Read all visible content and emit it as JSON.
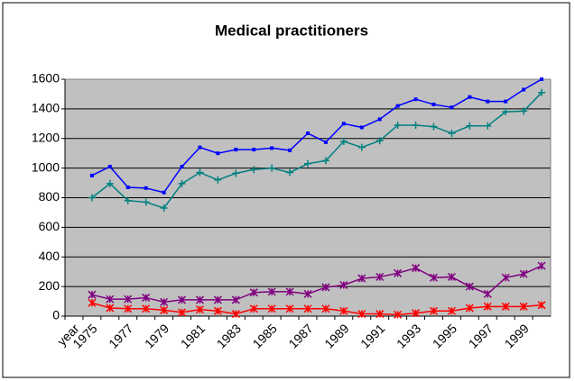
{
  "chart_data": {
    "type": "line",
    "title": "Medical practitioners",
    "categories": [
      "year",
      "1975",
      null,
      "1977",
      null,
      "1979",
      null,
      "1981",
      null,
      "1983",
      null,
      "1985",
      null,
      "1987",
      null,
      "1989",
      null,
      "1991",
      null,
      "1993",
      null,
      "1995",
      null,
      "1997",
      null,
      "1999",
      null
    ],
    "series": [
      {
        "color": "#0000ff",
        "marker": "dot",
        "values": [
          null,
          950,
          1010,
          870,
          865,
          835,
          1010,
          1140,
          1100,
          1125,
          1125,
          1135,
          1120,
          1235,
          1175,
          1300,
          1275,
          1330,
          1420,
          1465,
          1430,
          1410,
          1480,
          1450,
          1450,
          1530,
          1600
        ]
      },
      {
        "color": "#008080",
        "marker": "plus",
        "values": [
          null,
          800,
          895,
          780,
          770,
          730,
          895,
          970,
          920,
          965,
          990,
          1000,
          970,
          1030,
          1050,
          1180,
          1140,
          1185,
          1290,
          1290,
          1280,
          1235,
          1285,
          1285,
          1380,
          1385,
          1510
        ]
      },
      {
        "color": "#800080",
        "marker": "asterisk",
        "values": [
          null,
          145,
          115,
          115,
          125,
          95,
          110,
          110,
          110,
          110,
          160,
          165,
          165,
          150,
          195,
          210,
          255,
          265,
          290,
          325,
          260,
          265,
          200,
          150,
          260,
          285,
          340
        ]
      },
      {
        "color": "#ff0000",
        "marker": "asterisk",
        "values": [
          null,
          90,
          55,
          50,
          50,
          40,
          25,
          45,
          35,
          15,
          50,
          50,
          50,
          50,
          50,
          35,
          15,
          15,
          10,
          20,
          35,
          35,
          55,
          65,
          65,
          65,
          75
        ]
      }
    ],
    "ylim": [
      0,
      1600
    ],
    "yticks": [
      0,
      200,
      400,
      600,
      800,
      1000,
      1200,
      1400,
      1600
    ],
    "grid": true,
    "plot_background": "#c0c0c0"
  }
}
